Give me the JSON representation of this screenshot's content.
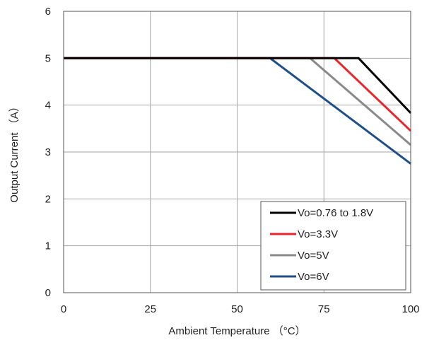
{
  "chart_data": {
    "type": "line",
    "xlabel": "Ambient Temperature （°C）",
    "ylabel": "Output Current （A）",
    "xlim": [
      0,
      100
    ],
    "ylim": [
      0,
      6
    ],
    "x_ticks": [
      "0",
      "25",
      "50",
      "75",
      "100"
    ],
    "y_ticks": [
      "0",
      "1",
      "2",
      "3",
      "4",
      "5",
      "6"
    ],
    "grid": true,
    "legend_position": "bottom-right",
    "series": [
      {
        "name": "Vo=0.76 to 1.8V",
        "color": "#000000",
        "x": [
          0,
          85,
          100
        ],
        "y": [
          5,
          5,
          3.83
        ]
      },
      {
        "name": "Vo=3.3V",
        "color": "#e8262b",
        "x": [
          0,
          78,
          100
        ],
        "y": [
          5,
          5,
          3.45
        ]
      },
      {
        "name": "Vo=5V",
        "color": "#8a8a8a",
        "x": [
          0,
          71,
          100
        ],
        "y": [
          5,
          5,
          3.15
        ]
      },
      {
        "name": "Vo=6V",
        "color": "#1f4e8c",
        "x": [
          0,
          59.5,
          100
        ],
        "y": [
          5,
          5,
          2.75
        ]
      }
    ]
  }
}
